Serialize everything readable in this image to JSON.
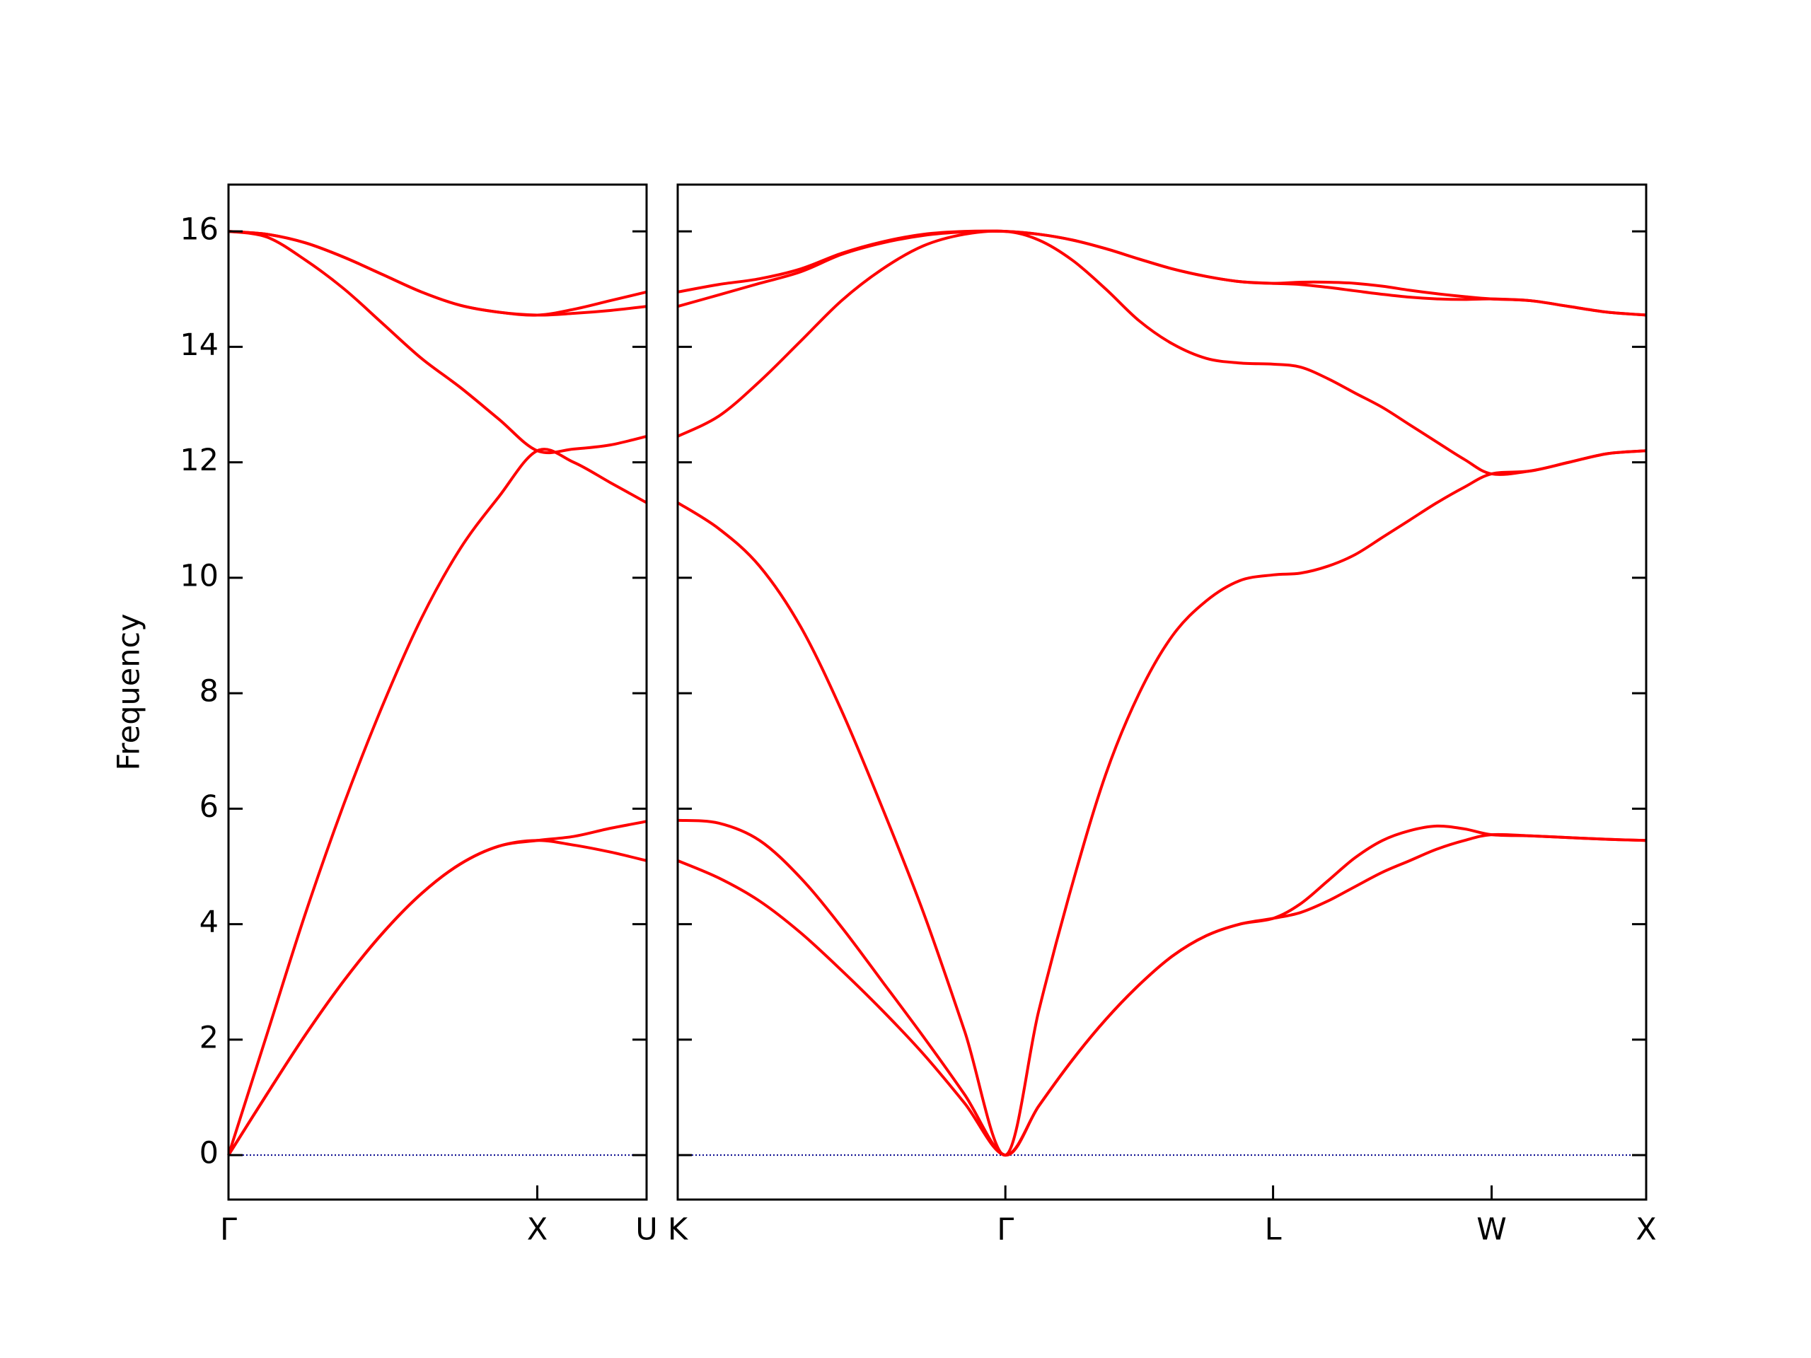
{
  "chart_data": [
    {
      "type": "line",
      "ylabel": "Frequency",
      "x": [
        0,
        0.125,
        0.25,
        0.375,
        0.5,
        0.625,
        0.75,
        0.875,
        1,
        1.118,
        1.236,
        1.354
      ],
      "series": [
        {
          "color": "#ff0000",
          "values": [
            0,
            1.06,
            2.09,
            3.03,
            3.85,
            4.53,
            5.04,
            5.35,
            5.45,
            5.37,
            5.25,
            5.1
          ]
        },
        {
          "color": "#ff0000",
          "values": [
            0,
            1.06,
            2.09,
            3.03,
            3.85,
            4.53,
            5.04,
            5.35,
            5.45,
            5.52,
            5.66,
            5.78
          ]
        },
        {
          "color": "#ff0000",
          "values": [
            0,
            2.1,
            4.2,
            6.1,
            7.8,
            9.3,
            10.5,
            11.4,
            12.2,
            12.0,
            11.65,
            11.3
          ]
        },
        {
          "color": "#ff0000",
          "values": [
            16,
            15.9,
            15.5,
            15.0,
            14.4,
            13.8,
            13.3,
            12.75,
            12.2,
            12.23,
            12.3,
            12.45
          ]
        },
        {
          "color": "#ff0000",
          "values": [
            16,
            15.95,
            15.8,
            15.55,
            15.25,
            14.95,
            14.72,
            14.6,
            14.55,
            14.58,
            14.63,
            14.7
          ]
        },
        {
          "color": "#ff0000",
          "values": [
            16,
            15.95,
            15.8,
            15.55,
            15.25,
            14.95,
            14.72,
            14.6,
            14.55,
            14.65,
            14.8,
            14.95
          ]
        }
      ],
      "xlim": [
        0,
        1.354
      ],
      "xticks": [
        {
          "value": 0,
          "label": "Γ"
        },
        {
          "value": 1,
          "label": "X"
        },
        {
          "value": 1.354,
          "label": "U"
        }
      ],
      "ylim": [
        -0.77,
        16.81
      ],
      "yticks": [
        0,
        2,
        4,
        6,
        8,
        10,
        12,
        14,
        16
      ],
      "hline": {
        "value": 0,
        "color": "#00008b",
        "style": "dotted"
      }
    },
    {
      "type": "line",
      "x": [
        1.354,
        1.487,
        1.619,
        1.752,
        1.884,
        2.017,
        2.149,
        2.282,
        2.414,
        2.522,
        2.631,
        2.739,
        2.847,
        2.955,
        3.064,
        3.172,
        3.28,
        3.368,
        3.457,
        3.545,
        3.634,
        3.722,
        3.81,
        3.899,
        3.987,
        4.112,
        4.237,
        4.362,
        4.487
      ],
      "series": [
        {
          "color": "#ff0000",
          "values": [
            5.1,
            4.8,
            4.4,
            3.85,
            3.2,
            2.5,
            1.75,
            0.9,
            0,
            0.85,
            1.65,
            2.35,
            2.95,
            3.45,
            3.8,
            4.0,
            4.1,
            4.2,
            4.4,
            4.65,
            4.9,
            5.1,
            5.3,
            5.45,
            5.55,
            5.53,
            5.5,
            5.47,
            5.45
          ]
        },
        {
          "color": "#ff0000",
          "values": [
            5.8,
            5.75,
            5.45,
            4.8,
            3.95,
            3.0,
            2.05,
            1.05,
            0,
            0.85,
            1.65,
            2.35,
            2.95,
            3.45,
            3.8,
            4.0,
            4.1,
            4.35,
            4.75,
            5.15,
            5.45,
            5.62,
            5.7,
            5.65,
            5.55,
            5.53,
            5.5,
            5.47,
            5.45
          ]
        },
        {
          "color": "#ff0000",
          "values": [
            11.3,
            10.85,
            10.2,
            9.15,
            7.7,
            6.0,
            4.2,
            2.15,
            0,
            2.5,
            4.7,
            6.6,
            8.0,
            9.0,
            9.6,
            9.95,
            10.05,
            10.08,
            10.2,
            10.4,
            10.7,
            11.0,
            11.3,
            11.57,
            11.8,
            11.85,
            12.0,
            12.15,
            12.2
          ]
        },
        {
          "color": "#ff0000",
          "values": [
            12.45,
            12.8,
            13.4,
            14.1,
            14.8,
            15.35,
            15.75,
            15.95,
            16,
            15.85,
            15.5,
            15.0,
            14.45,
            14.05,
            13.8,
            13.72,
            13.7,
            13.65,
            13.45,
            13.2,
            12.95,
            12.65,
            12.35,
            12.05,
            11.8,
            11.85,
            12.0,
            12.15,
            12.2
          ]
        },
        {
          "color": "#ff0000",
          "values": [
            14.7,
            14.9,
            15.1,
            15.3,
            15.6,
            15.8,
            15.93,
            15.99,
            16,
            15.95,
            15.85,
            15.7,
            15.52,
            15.35,
            15.22,
            15.13,
            15.1,
            15.08,
            15.03,
            14.97,
            14.91,
            14.86,
            14.83,
            14.82,
            14.83,
            14.8,
            14.7,
            14.6,
            14.55
          ]
        },
        {
          "color": "#ff0000",
          "values": [
            14.95,
            15.08,
            15.18,
            15.35,
            15.62,
            15.82,
            15.95,
            16.0,
            16,
            15.95,
            15.85,
            15.7,
            15.52,
            15.35,
            15.22,
            15.13,
            15.1,
            15.12,
            15.12,
            15.1,
            15.05,
            14.98,
            14.92,
            14.87,
            14.83,
            14.8,
            14.7,
            14.6,
            14.55
          ]
        }
      ],
      "xlim": [
        1.354,
        4.487
      ],
      "xticks": [
        {
          "value": 1.354,
          "label": "K"
        },
        {
          "value": 2.414,
          "label": "Γ"
        },
        {
          "value": 3.28,
          "label": "L"
        },
        {
          "value": 3.987,
          "label": "W"
        },
        {
          "value": 4.487,
          "label": "X"
        }
      ],
      "ylim": [
        -0.77,
        16.81
      ],
      "yticks": [
        0,
        2,
        4,
        6,
        8,
        10,
        12,
        14,
        16
      ],
      "hline": {
        "value": 0,
        "color": "#00008b",
        "style": "dotted"
      }
    }
  ]
}
